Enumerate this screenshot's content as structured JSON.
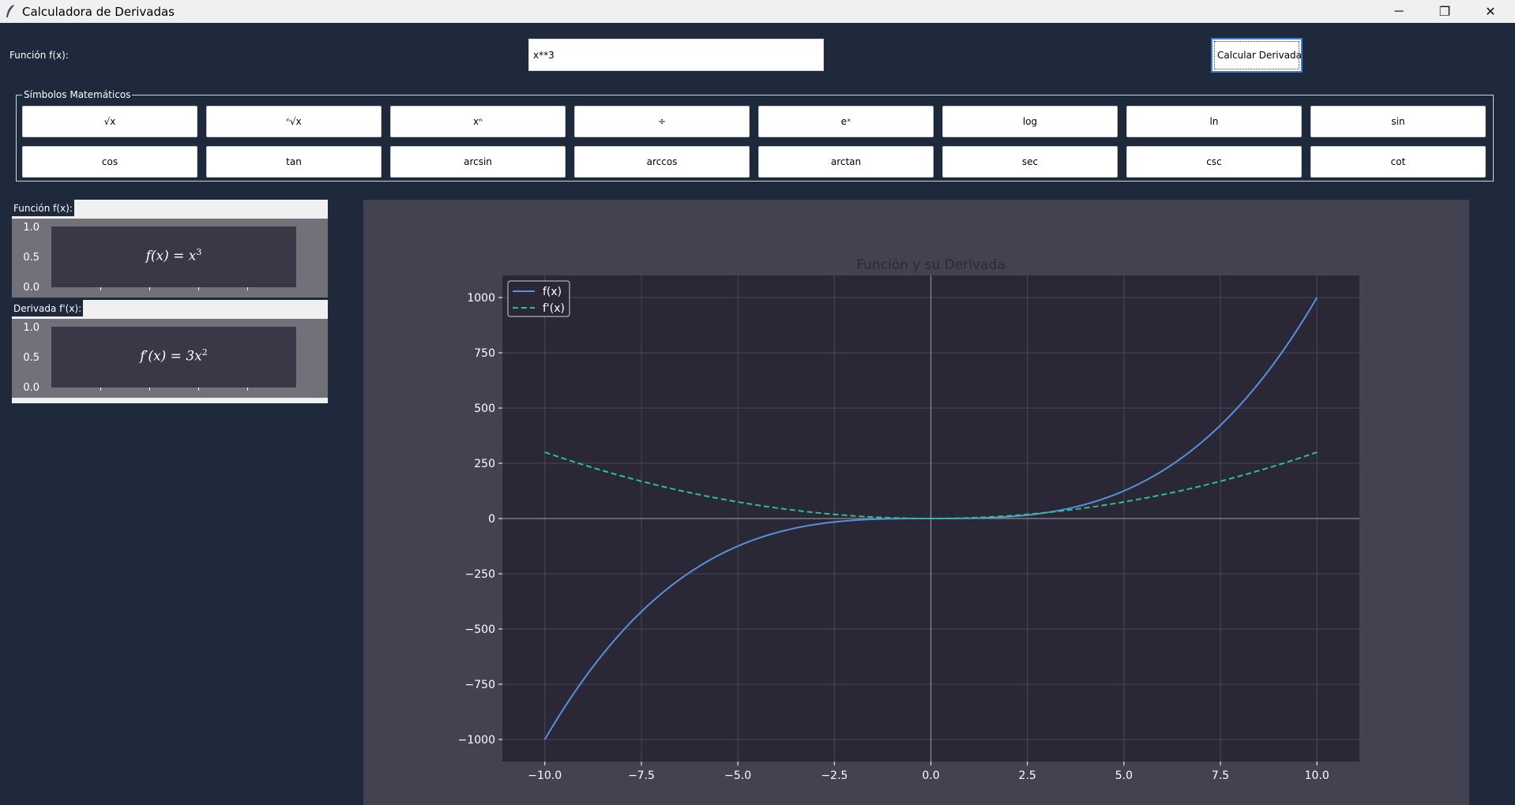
{
  "window": {
    "title": "Calculadora de Derivadas",
    "minimize_glyph": "─",
    "restore_glyph": "❐",
    "close_glyph": "✕"
  },
  "header": {
    "function_label": "Función f(x):",
    "function_value": "x**3",
    "calculate_label": "Calcular Derivada"
  },
  "symbols": {
    "legend": "Símbolos Matemáticos",
    "items": [
      "√x",
      "ⁿ√x",
      "xⁿ",
      "÷",
      "eˣ",
      "log",
      "ln",
      "sin",
      "cos",
      "tan",
      "arcsin",
      "arccos",
      "arctan",
      "sec",
      "csc",
      "cot"
    ]
  },
  "preview": {
    "function_label": "Función f(x):",
    "function_tex_base": "f(x) = x",
    "function_tex_exp": "3",
    "derivative_label": "Derivada f'(x):",
    "derivative_tex_base": "f′(x) = 3x",
    "derivative_tex_exp": "2",
    "yticks": [
      "1.0",
      "0.5",
      "0.0"
    ]
  },
  "colors": {
    "background": "#1e293b",
    "figure": "#434250",
    "axes": "#2a2837",
    "fx": "#5b8fd9",
    "dfx": "#2fbf8c"
  },
  "chart_data": {
    "type": "line",
    "title": "Función y su Derivada",
    "xlim": [
      -11.1,
      11.1
    ],
    "ylim": [
      -1100,
      1100
    ],
    "xticks": [
      -10.0,
      -7.5,
      -5.0,
      -2.5,
      0.0,
      2.5,
      5.0,
      7.5,
      10.0
    ],
    "xtick_labels": [
      "−10.0",
      "−7.5",
      "−5.0",
      "−2.5",
      "0.0",
      "2.5",
      "5.0",
      "7.5",
      "10.0"
    ],
    "yticks": [
      1000,
      750,
      500,
      250,
      0,
      -250,
      -500,
      -750,
      -1000
    ],
    "ytick_labels": [
      "1000",
      "750",
      "500",
      "250",
      "0",
      "−250",
      "−500",
      "−750",
      "−1000"
    ],
    "grid": true,
    "legend_position": "top-left",
    "series": [
      {
        "name": "f(x)",
        "style": "solid",
        "color": "#5b8fd9",
        "x": [
          -10,
          -9,
          -8,
          -7,
          -6,
          -5,
          -4,
          -3,
          -2,
          -1,
          0,
          1,
          2,
          3,
          4,
          5,
          6,
          7,
          8,
          9,
          10
        ],
        "y": [
          -1000,
          -729,
          -512,
          -343,
          -216,
          -125,
          -64,
          -27,
          -8,
          -1,
          0,
          1,
          8,
          27,
          64,
          125,
          216,
          343,
          512,
          729,
          1000
        ]
      },
      {
        "name": "f'(x)",
        "style": "dashed",
        "color": "#2fbf8c",
        "x": [
          -10,
          -9,
          -8,
          -7,
          -6,
          -5,
          -4,
          -3,
          -2,
          -1,
          0,
          1,
          2,
          3,
          4,
          5,
          6,
          7,
          8,
          9,
          10
        ],
        "y": [
          300,
          243,
          192,
          147,
          108,
          75,
          48,
          27,
          12,
          3,
          0,
          3,
          12,
          27,
          48,
          75,
          108,
          147,
          192,
          243,
          300
        ]
      }
    ]
  }
}
